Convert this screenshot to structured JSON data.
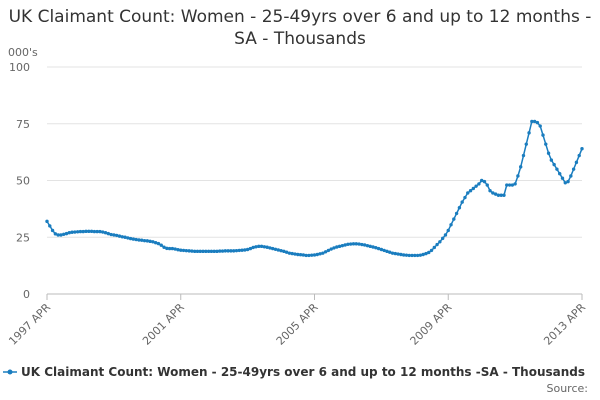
{
  "chart_data": {
    "type": "line",
    "title": "UK Claimant Count: Women - 25-49yrs over 6 and up to 12 months -SA - Thousands",
    "y_label": "000's",
    "source": "Source:",
    "ylim": [
      0,
      100
    ],
    "yticks": [
      0,
      25,
      50,
      75,
      100
    ],
    "grid": true,
    "legend": "bottom",
    "categories": [
      "1997 APR",
      null,
      null,
      null,
      null,
      null,
      null,
      null,
      null,
      null,
      null,
      null,
      null,
      null,
      null,
      null,
      null,
      null,
      null,
      null,
      null,
      null,
      null,
      null,
      null,
      null,
      null,
      null,
      null,
      null,
      null,
      null,
      null,
      null,
      null,
      null,
      null,
      null,
      null,
      null,
      null,
      null,
      null,
      null,
      null,
      null,
      null,
      null,
      "2001 APR",
      null,
      null,
      null,
      null,
      null,
      null,
      null,
      null,
      null,
      null,
      null,
      null,
      null,
      null,
      null,
      null,
      null,
      null,
      null,
      null,
      null,
      null,
      null,
      null,
      null,
      null,
      null,
      null,
      null,
      null,
      null,
      null,
      null,
      null,
      null,
      null,
      null,
      null,
      null,
      null,
      null,
      null,
      null,
      null,
      null,
      null,
      null,
      "2005 APR",
      null,
      null,
      null,
      null,
      null,
      null,
      null,
      null,
      null,
      null,
      null,
      null,
      null,
      null,
      null,
      null,
      null,
      null,
      null,
      null,
      null,
      null,
      null,
      null,
      null,
      null,
      null,
      null,
      null,
      null,
      null,
      null,
      null,
      null,
      null,
      null,
      null,
      null,
      null,
      null,
      null,
      null,
      null,
      null,
      null,
      null,
      null,
      "2009 APR",
      null,
      null,
      null,
      null,
      null,
      null,
      null,
      null,
      null,
      null,
      null,
      null,
      null,
      null,
      null,
      null,
      null,
      null,
      null,
      null,
      null,
      null,
      null,
      null,
      null,
      null,
      null,
      null,
      null,
      null,
      null,
      null,
      null,
      null,
      null,
      null,
      null,
      null,
      null,
      null,
      null,
      null,
      null,
      null,
      null,
      null,
      null,
      "2013 APR"
    ],
    "series": [
      {
        "name": "UK Claimant Count: Women - 25-49yrs over 6 and up to 12 months -SA - Thousands",
        "color": "#1a7dbf",
        "values": [
          32,
          30,
          28,
          26.5,
          26,
          26,
          26.3,
          26.6,
          27,
          27.2,
          27.3,
          27.4,
          27.5,
          27.5,
          27.6,
          27.6,
          27.6,
          27.5,
          27.5,
          27.5,
          27.3,
          27,
          26.6,
          26.2,
          26,
          25.8,
          25.5,
          25.2,
          25,
          24.7,
          24.4,
          24.2,
          24,
          23.8,
          23.7,
          23.5,
          23.4,
          23.2,
          23,
          22.6,
          22.2,
          21.5,
          20.6,
          20.1,
          20,
          20,
          19.8,
          19.5,
          19.3,
          19.2,
          19.1,
          19,
          18.9,
          18.8,
          18.8,
          18.8,
          18.8,
          18.8,
          18.8,
          18.8,
          18.8,
          18.8,
          18.9,
          18.9,
          19,
          19,
          19,
          19,
          19.1,
          19.2,
          19.3,
          19.4,
          19.6,
          20,
          20.5,
          20.8,
          21,
          21,
          20.8,
          20.6,
          20.3,
          20,
          19.7,
          19.4,
          19.1,
          18.8,
          18.4,
          18,
          17.8,
          17.6,
          17.4,
          17.3,
          17.2,
          17,
          17,
          17.1,
          17.2,
          17.4,
          17.7,
          18,
          18.6,
          19.2,
          19.8,
          20.3,
          20.7,
          21,
          21.3,
          21.6,
          21.9,
          22,
          22.1,
          22.1,
          22,
          21.8,
          21.6,
          21.3,
          21,
          20.7,
          20.4,
          20,
          19.6,
          19.2,
          18.8,
          18.4,
          18,
          17.8,
          17.6,
          17.4,
          17.2,
          17.1,
          17,
          17,
          17,
          17,
          17.1,
          17.4,
          17.8,
          18.3,
          19.2,
          20.5,
          21.8,
          23,
          24.5,
          26,
          28,
          30.5,
          33,
          35.5,
          38,
          40.5,
          42.5,
          44.5,
          45.5,
          46.5,
          47.5,
          48.5,
          50,
          49.5,
          48,
          45.5,
          44.5,
          44,
          43.5,
          43.5,
          43.5,
          48,
          48,
          48,
          48.5,
          52,
          56,
          61,
          66,
          71,
          76,
          76,
          75.5,
          74,
          70,
          66,
          62,
          59,
          57,
          55,
          53,
          51,
          49,
          49.5,
          52,
          55,
          58,
          61,
          64
        ]
      }
    ]
  }
}
